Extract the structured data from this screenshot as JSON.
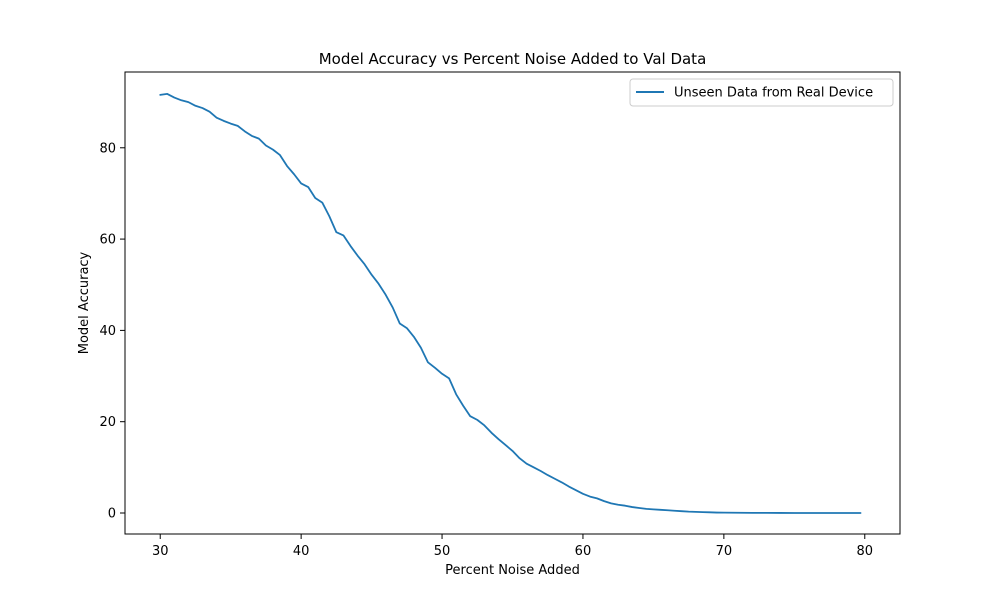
{
  "chart_data": {
    "type": "line",
    "title": "Model Accuracy vs Percent Noise Added to Val Data",
    "xlabel": "Percent Noise Added",
    "ylabel": "Model Accuracy",
    "xlim": [
      27.5,
      82.5
    ],
    "ylim": [
      -4.6,
      96.6
    ],
    "xticks": [
      30,
      40,
      50,
      60,
      70,
      80
    ],
    "yticks": [
      0,
      20,
      40,
      60,
      80
    ],
    "grid": false,
    "legend_position": "top-right",
    "series": [
      {
        "name": "Unseen Data from Real Device",
        "color": "#1f77b4",
        "x": [
          30.0,
          30.5,
          31.0,
          31.5,
          32.0,
          32.5,
          33.0,
          33.5,
          34.0,
          34.5,
          35.0,
          35.5,
          36.0,
          36.5,
          37.0,
          37.5,
          38.0,
          38.5,
          39.0,
          39.5,
          40.0,
          40.5,
          41.0,
          41.5,
          42.0,
          42.5,
          43.0,
          43.5,
          44.0,
          44.5,
          45.0,
          45.5,
          46.0,
          46.5,
          47.0,
          47.5,
          48.0,
          48.5,
          49.0,
          49.5,
          50.0,
          50.5,
          51.0,
          51.5,
          52.0,
          52.5,
          53.0,
          53.5,
          54.0,
          54.5,
          55.0,
          55.5,
          56.0,
          56.5,
          57.0,
          57.5,
          58.0,
          58.5,
          59.0,
          59.5,
          60.0,
          60.5,
          61.0,
          61.5,
          62.0,
          62.5,
          63.0,
          63.5,
          64.0,
          64.5,
          65.0,
          65.5,
          66.0,
          66.5,
          67.0,
          67.5,
          68.0,
          68.5,
          69.0,
          69.5,
          70.0,
          71.0,
          72.0,
          73.0,
          74.0,
          75.0,
          76.0,
          77.0,
          78.0,
          79.0,
          79.7
        ],
        "y": [
          91.6,
          91.8,
          91.0,
          90.4,
          90.0,
          89.2,
          88.7,
          87.9,
          86.6,
          85.9,
          85.3,
          84.8,
          83.6,
          82.6,
          82.0,
          80.5,
          79.6,
          78.4,
          76.0,
          74.2,
          72.2,
          71.4,
          69.0,
          68.0,
          65.0,
          61.5,
          60.8,
          58.5,
          56.4,
          54.5,
          52.2,
          50.2,
          47.8,
          45.0,
          41.5,
          40.5,
          38.6,
          36.2,
          33.0,
          31.8,
          30.5,
          29.5,
          26.0,
          23.5,
          21.2,
          20.4,
          19.2,
          17.6,
          16.2,
          14.9,
          13.6,
          12.0,
          10.8,
          10.0,
          9.2,
          8.3,
          7.5,
          6.7,
          5.8,
          5.0,
          4.2,
          3.6,
          3.2,
          2.6,
          2.1,
          1.8,
          1.6,
          1.3,
          1.1,
          0.9,
          0.8,
          0.7,
          0.6,
          0.5,
          0.4,
          0.3,
          0.25,
          0.2,
          0.15,
          0.1,
          0.08,
          0.05,
          0.03,
          0.02,
          0.01,
          0.0,
          0.0,
          0.0,
          0.0,
          0.0,
          0.0
        ]
      }
    ]
  }
}
